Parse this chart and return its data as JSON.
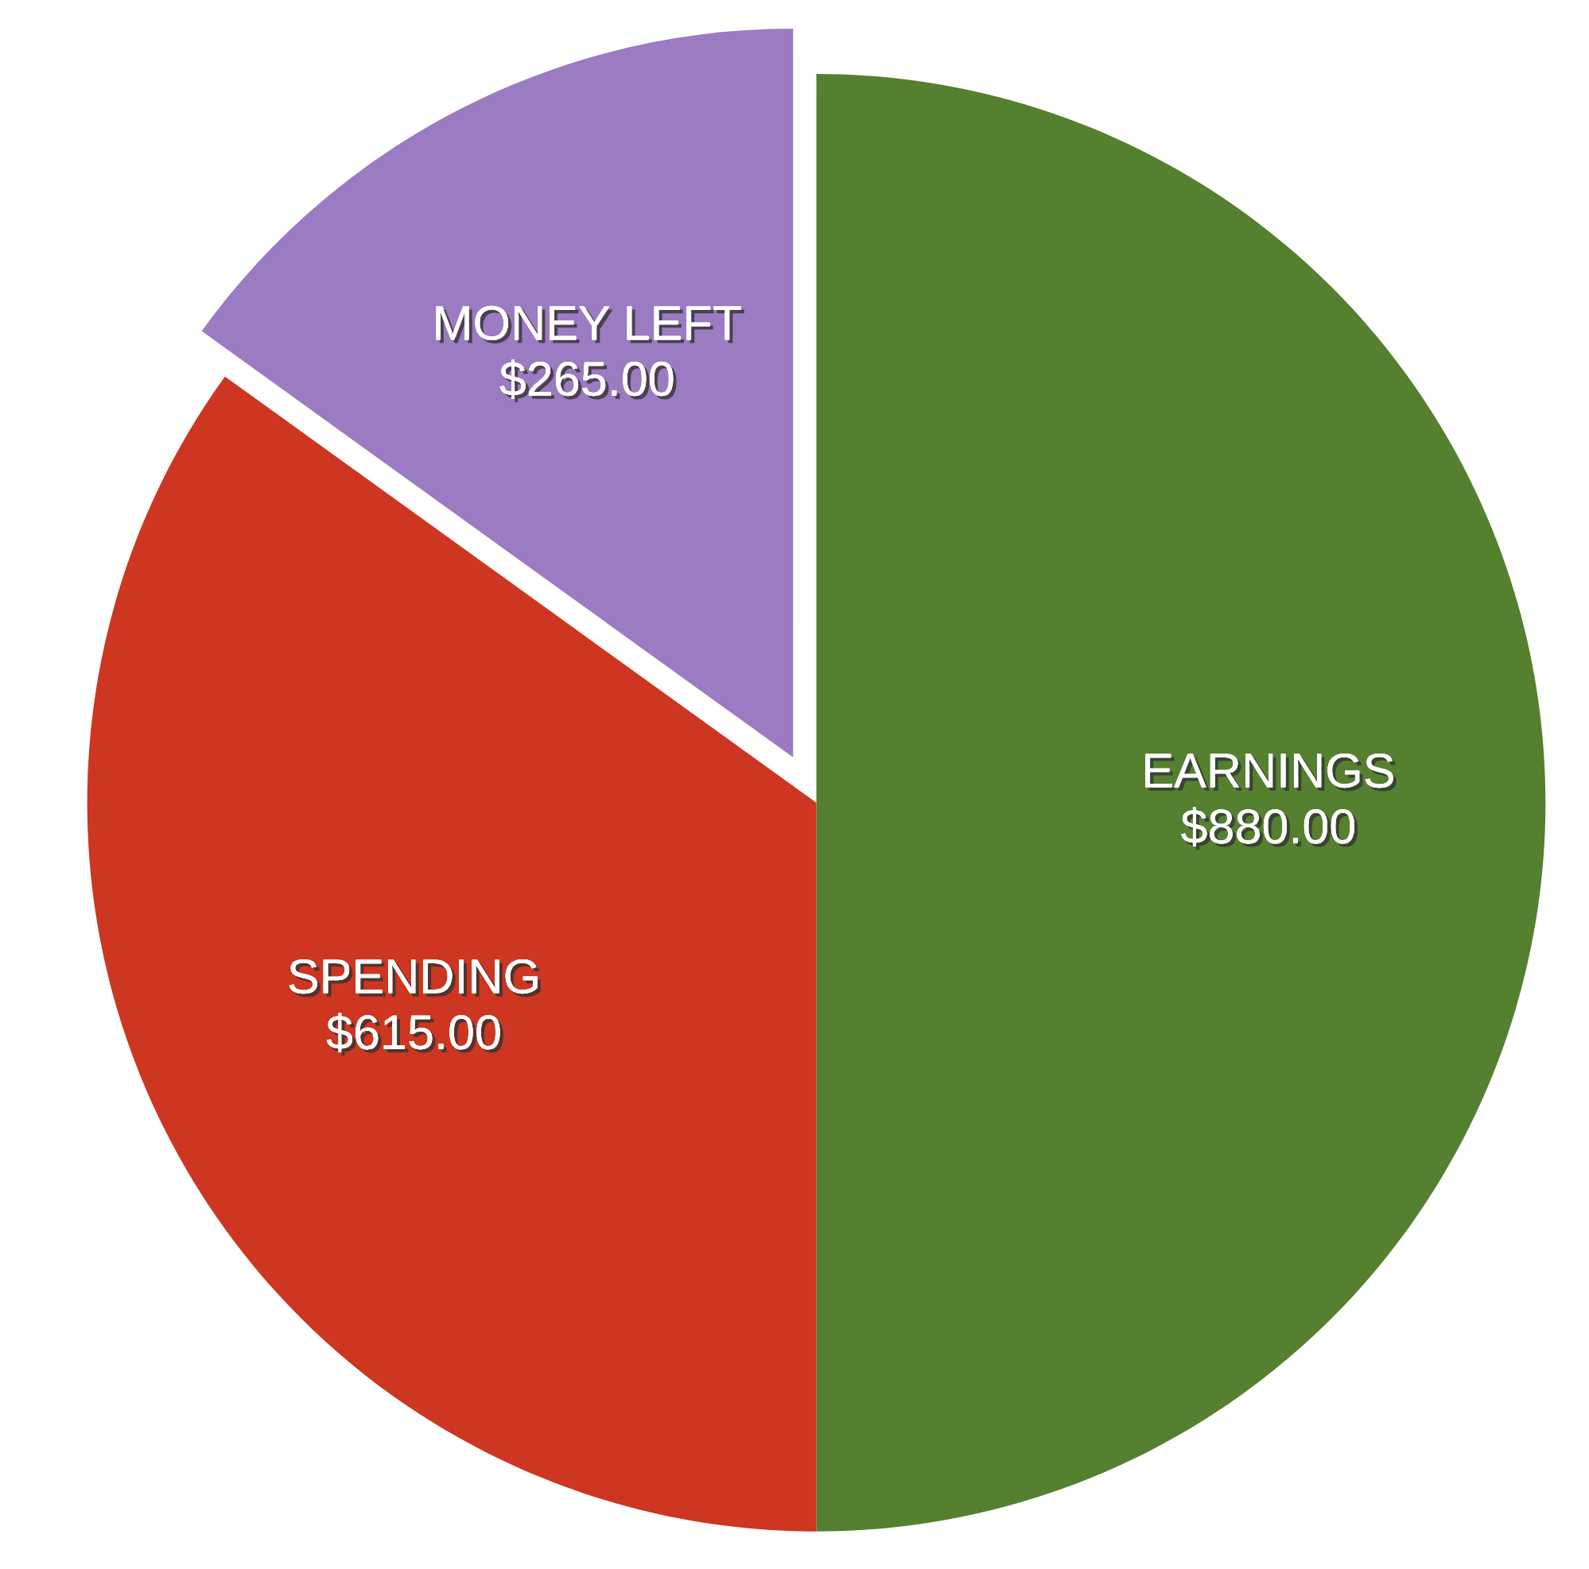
{
  "chart_data": {
    "type": "pie",
    "categories": [
      "EARNINGS",
      "SPENDING",
      "MONEY LEFT"
    ],
    "values": [
      880,
      615,
      265
    ],
    "value_labels": [
      "$880.00",
      "$615.00",
      "$265.00"
    ],
    "colors": [
      "#548030",
      "#cd3621",
      "#9b7bc2"
    ]
  }
}
